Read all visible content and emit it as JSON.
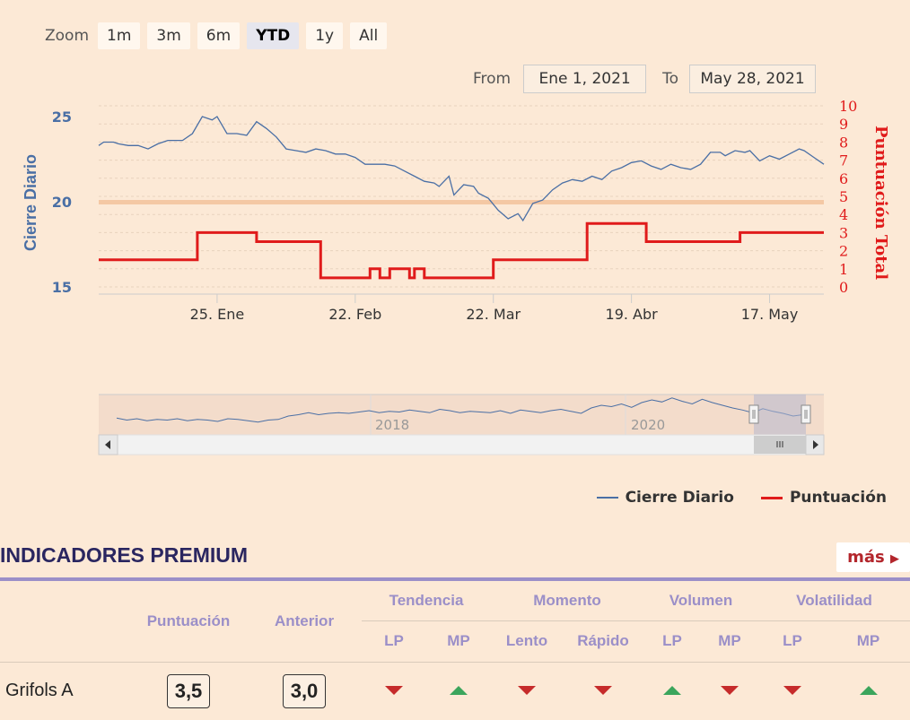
{
  "zoom": {
    "label": "Zoom",
    "buttons": [
      "1m",
      "3m",
      "6m",
      "YTD",
      "1y",
      "All"
    ],
    "active": "YTD"
  },
  "range": {
    "from_label": "From",
    "from_value": "Ene 1, 2021",
    "to_label": "To",
    "to_value": "May 28, 2021"
  },
  "chart_data": {
    "type": "line",
    "ylabel": "Cierre Diario",
    "y2label": "Puntuación Total",
    "ylim": [
      15,
      25
    ],
    "yticks": [
      15,
      20,
      25
    ],
    "y2lim": [
      0,
      10
    ],
    "y2ticks": [
      0,
      1,
      2,
      3,
      4,
      5,
      6,
      7,
      8,
      9,
      10
    ],
    "xlim": [
      "2021-01-01",
      "2021-05-28"
    ],
    "xticks": [
      {
        "date": "2021-01-25",
        "label": "25. Ene"
      },
      {
        "date": "2021-02-22",
        "label": "22. Feb"
      },
      {
        "date": "2021-03-22",
        "label": "22. Mar"
      },
      {
        "date": "2021-04-19",
        "label": "19. Abr"
      },
      {
        "date": "2021-05-17",
        "label": "17. May"
      }
    ],
    "plot_band_value": 20,
    "series": [
      {
        "name": "Cierre Diario",
        "axis": "left",
        "color": "#4a6fa5",
        "points": [
          [
            "2021-01-01",
            23.3
          ],
          [
            "2021-01-02",
            23.5
          ],
          [
            "2021-01-04",
            23.5
          ],
          [
            "2021-01-05",
            23.4
          ],
          [
            "2021-01-07",
            23.3
          ],
          [
            "2021-01-09",
            23.3
          ],
          [
            "2021-01-11",
            23.1
          ],
          [
            "2021-01-13",
            23.4
          ],
          [
            "2021-01-15",
            23.6
          ],
          [
            "2021-01-18",
            23.6
          ],
          [
            "2021-01-20",
            24.0
          ],
          [
            "2021-01-22",
            25.0
          ],
          [
            "2021-01-24",
            24.8
          ],
          [
            "2021-01-25",
            25.0
          ],
          [
            "2021-01-27",
            24.0
          ],
          [
            "2021-01-29",
            24.0
          ],
          [
            "2021-01-31",
            23.9
          ],
          [
            "2021-02-02",
            24.7
          ],
          [
            "2021-02-04",
            24.3
          ],
          [
            "2021-02-06",
            23.8
          ],
          [
            "2021-02-08",
            23.1
          ],
          [
            "2021-02-10",
            23.0
          ],
          [
            "2021-02-12",
            22.9
          ],
          [
            "2021-02-14",
            23.1
          ],
          [
            "2021-02-16",
            23.0
          ],
          [
            "2021-02-18",
            22.8
          ],
          [
            "2021-02-20",
            22.8
          ],
          [
            "2021-02-22",
            22.6
          ],
          [
            "2021-02-24",
            22.2
          ],
          [
            "2021-02-26",
            22.2
          ],
          [
            "2021-02-28",
            22.2
          ],
          [
            "2021-03-02",
            22.1
          ],
          [
            "2021-03-04",
            21.8
          ],
          [
            "2021-03-06",
            21.5
          ],
          [
            "2021-03-08",
            21.2
          ],
          [
            "2021-03-10",
            21.1
          ],
          [
            "2021-03-11",
            20.9
          ],
          [
            "2021-03-13",
            21.5
          ],
          [
            "2021-03-14",
            20.4
          ],
          [
            "2021-03-16",
            21.0
          ],
          [
            "2021-03-18",
            20.9
          ],
          [
            "2021-03-19",
            20.5
          ],
          [
            "2021-03-21",
            20.2
          ],
          [
            "2021-03-23",
            19.5
          ],
          [
            "2021-03-25",
            19.0
          ],
          [
            "2021-03-27",
            19.3
          ],
          [
            "2021-03-28",
            18.9
          ],
          [
            "2021-03-30",
            19.9
          ],
          [
            "2021-04-01",
            20.1
          ],
          [
            "2021-04-03",
            20.7
          ],
          [
            "2021-04-05",
            21.1
          ],
          [
            "2021-04-07",
            21.3
          ],
          [
            "2021-04-09",
            21.2
          ],
          [
            "2021-04-11",
            21.5
          ],
          [
            "2021-04-13",
            21.3
          ],
          [
            "2021-04-15",
            21.8
          ],
          [
            "2021-04-17",
            22.0
          ],
          [
            "2021-04-19",
            22.3
          ],
          [
            "2021-04-21",
            22.4
          ],
          [
            "2021-04-23",
            22.1
          ],
          [
            "2021-04-25",
            21.9
          ],
          [
            "2021-04-27",
            22.2
          ],
          [
            "2021-04-29",
            22.0
          ],
          [
            "2021-05-01",
            21.9
          ],
          [
            "2021-05-03",
            22.2
          ],
          [
            "2021-05-05",
            22.9
          ],
          [
            "2021-05-07",
            22.9
          ],
          [
            "2021-05-08",
            22.7
          ],
          [
            "2021-05-10",
            23.0
          ],
          [
            "2021-05-12",
            22.9
          ],
          [
            "2021-05-13",
            23.0
          ],
          [
            "2021-05-15",
            22.4
          ],
          [
            "2021-05-17",
            22.7
          ],
          [
            "2021-05-19",
            22.5
          ],
          [
            "2021-05-21",
            22.8
          ],
          [
            "2021-05-23",
            23.1
          ],
          [
            "2021-05-24",
            23.0
          ],
          [
            "2021-05-26",
            22.6
          ],
          [
            "2021-05-28",
            22.2
          ]
        ]
      },
      {
        "name": "Puntuación",
        "axis": "right",
        "color": "#e01b1b",
        "step": true,
        "points": [
          [
            "2021-01-01",
            1.5
          ],
          [
            "2021-01-21",
            3.0
          ],
          [
            "2021-02-02",
            2.5
          ],
          [
            "2021-02-15",
            0.5
          ],
          [
            "2021-02-25",
            1.0
          ],
          [
            "2021-02-27",
            0.5
          ],
          [
            "2021-03-01",
            1.0
          ],
          [
            "2021-03-05",
            0.5
          ],
          [
            "2021-03-06",
            1.0
          ],
          [
            "2021-03-08",
            0.5
          ],
          [
            "2021-03-22",
            1.5
          ],
          [
            "2021-04-10",
            3.5
          ],
          [
            "2021-04-22",
            2.5
          ],
          [
            "2021-05-11",
            3.0
          ],
          [
            "2021-05-28",
            3.0
          ]
        ]
      }
    ],
    "navigator": {
      "labels": [
        "2018",
        "2020"
      ],
      "values": [
        20.5,
        20.2,
        20.4,
        20.1,
        20.3,
        20.2,
        20.4,
        20.1,
        20.3,
        20.2,
        20.0,
        20.4,
        20.3,
        20.1,
        19.9,
        20.2,
        20.3,
        20.8,
        21.0,
        21.3,
        21.0,
        21.2,
        21.3,
        21.2,
        21.4,
        21.6,
        21.3,
        21.5,
        21.4,
        21.7,
        21.5,
        21.3,
        21.8,
        21.6,
        21.3,
        21.5,
        21.4,
        21.3,
        21.6,
        21.2,
        21.7,
        21.5,
        21.3,
        21.6,
        21.8,
        21.5,
        21.2,
        22.0,
        22.4,
        22.2,
        22.6,
        22.1,
        22.8,
        23.2,
        22.9,
        23.5,
        23.0,
        22.6,
        23.3,
        22.8,
        22.4,
        22.0,
        21.7,
        21.3,
        21.9,
        21.5,
        21.2,
        20.8,
        21.0
      ]
    }
  },
  "legend": {
    "items": [
      {
        "label": "Cierre Diario",
        "color": "#4a6fa5"
      },
      {
        "label": "Puntuación",
        "color": "#e01b1b"
      }
    ]
  },
  "indicators": {
    "title": "INDICADORES PREMIUM",
    "more_label": "más",
    "col_score": "Puntuación",
    "col_prev": "Anterior",
    "groups": [
      "Tendencia",
      "Momento",
      "Volumen",
      "Volatilidad"
    ],
    "subcols": [
      "LP",
      "MP",
      "Lento",
      "Rápido",
      "LP",
      "MP",
      "LP",
      "MP"
    ],
    "row": {
      "name": "Grifols A",
      "score": "3,5",
      "prev": "3,0",
      "signals": [
        "down",
        "up",
        "down",
        "down",
        "up",
        "down",
        "down",
        "up"
      ],
      "up_color": "#3ba55c",
      "down_color": "#c62b2b"
    }
  }
}
